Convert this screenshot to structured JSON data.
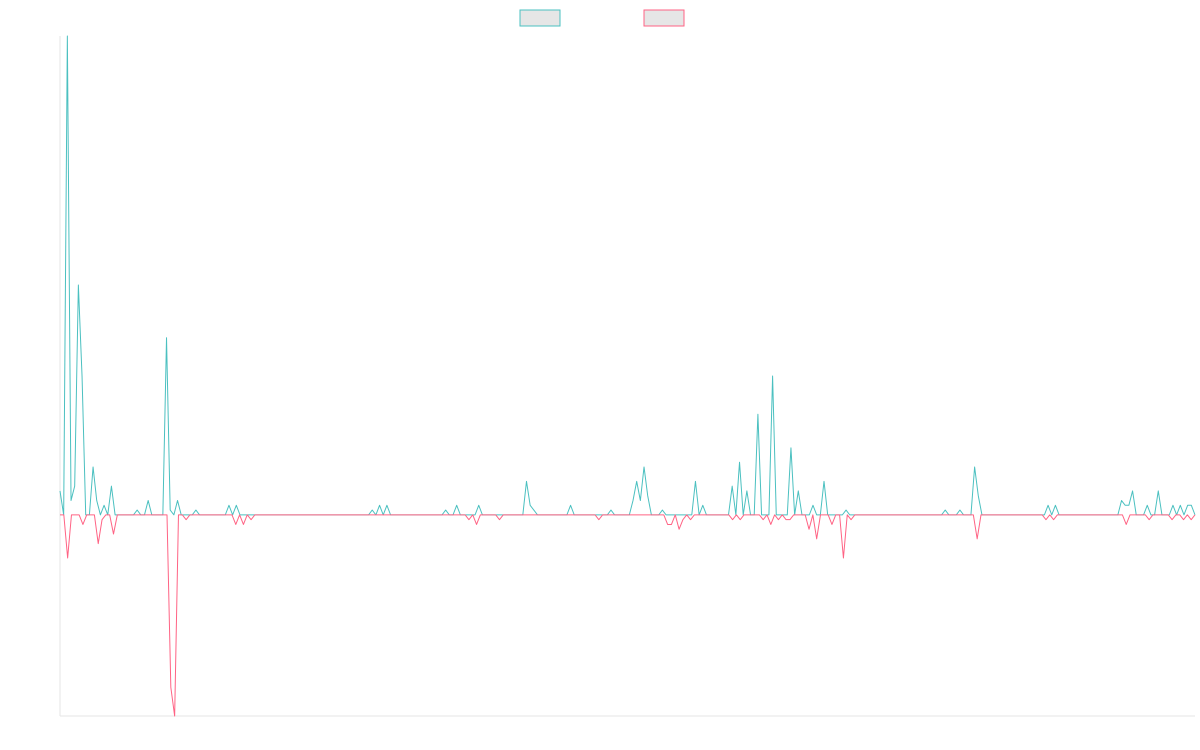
{
  "chart_data": {
    "type": "line",
    "title": "",
    "xlabel": "",
    "ylabel": "",
    "ylim": [
      -0.42,
      1.0
    ],
    "grid": false,
    "legend": {
      "position": "top-center"
    },
    "legend_fill": "#e6e6e6",
    "series": [
      {
        "color": "#4bc0c0",
        "values": [
          0.05,
          0,
          1.0,
          0.03,
          0.06,
          0.48,
          0.29,
          0,
          0,
          0.1,
          0.03,
          0,
          0.02,
          0,
          0.06,
          0,
          0,
          0,
          0,
          0,
          0,
          0.01,
          0,
          0,
          0.03,
          0,
          0,
          0,
          0,
          0.37,
          0.01,
          0,
          0.03,
          0,
          0,
          0,
          0,
          0.01,
          0,
          0,
          0,
          0,
          0,
          0,
          0,
          0,
          0.02,
          0,
          0.02,
          0,
          0,
          0,
          0,
          0,
          0,
          0,
          0,
          0,
          0,
          0,
          0,
          0,
          0,
          0,
          0,
          0,
          0,
          0,
          0,
          0,
          0,
          0,
          0,
          0,
          0,
          0,
          0,
          0,
          0,
          0,
          0,
          0,
          0,
          0,
          0,
          0.01,
          0,
          0.02,
          0,
          0.02,
          0,
          0,
          0,
          0,
          0,
          0,
          0,
          0,
          0,
          0,
          0,
          0,
          0,
          0,
          0,
          0.01,
          0,
          0,
          0.02,
          0,
          0,
          0,
          0,
          0,
          0.02,
          0,
          0,
          0,
          0,
          0,
          0,
          0,
          0,
          0,
          0,
          0,
          0,
          0.07,
          0.02,
          0.01,
          0,
          0,
          0,
          0,
          0,
          0,
          0,
          0,
          0,
          0.02,
          0,
          0,
          0,
          0,
          0,
          0,
          0,
          0,
          0,
          0,
          0.01,
          0,
          0,
          0,
          0,
          0,
          0.03,
          0.07,
          0.03,
          0.1,
          0.04,
          0,
          0,
          0,
          0.01,
          0,
          0,
          0,
          0,
          0,
          0,
          0,
          0,
          0.07,
          0,
          0.02,
          0,
          0,
          0,
          0,
          0,
          0,
          0,
          0.06,
          0,
          0.11,
          0,
          0.05,
          0,
          0,
          0.21,
          0,
          0,
          0,
          0.29,
          0,
          0,
          0,
          0,
          0.14,
          0,
          0.05,
          0,
          0,
          0,
          0.02,
          0,
          0,
          0.07,
          0,
          0,
          0,
          0,
          0,
          0.01,
          0,
          0,
          0,
          0,
          0,
          0,
          0,
          0,
          0,
          0,
          0,
          0,
          0,
          0,
          0,
          0,
          0,
          0,
          0,
          0,
          0,
          0,
          0,
          0,
          0,
          0,
          0.01,
          0,
          0,
          0,
          0.01,
          0,
          0,
          0,
          0.1,
          0.04,
          0,
          0,
          0,
          0,
          0,
          0,
          0,
          0,
          0,
          0,
          0,
          0,
          0,
          0,
          0,
          0,
          0,
          0,
          0.02,
          0,
          0.02,
          0,
          0,
          0,
          0,
          0,
          0,
          0,
          0,
          0,
          0,
          0,
          0,
          0,
          0,
          0,
          0,
          0,
          0.03,
          0.02,
          0.02,
          0.05,
          0,
          0,
          0,
          0.02,
          0,
          0,
          0.05,
          0,
          0,
          0,
          0.02,
          0,
          0.02,
          0,
          0.02,
          0.02,
          0
        ]
      },
      {
        "color": "#ff6384",
        "values": [
          0,
          0,
          -0.09,
          0,
          0,
          0,
          -0.02,
          0,
          0,
          0,
          -0.06,
          -0.01,
          0,
          0,
          -0.04,
          0,
          0,
          0,
          0,
          0,
          0,
          0,
          0,
          0,
          0,
          0,
          0,
          0,
          0,
          -0.36,
          -0.42,
          0,
          0,
          -0.01,
          0,
          0,
          0,
          0,
          0,
          0,
          0,
          0,
          0,
          0,
          0,
          0,
          -0.02,
          0,
          -0.02,
          0,
          -0.01,
          0,
          0,
          0,
          0,
          0,
          0,
          0,
          0,
          0,
          0,
          0,
          0,
          0,
          0,
          0,
          0,
          0,
          0,
          0,
          0,
          0,
          0,
          0,
          0,
          0,
          0,
          0,
          0,
          0,
          0,
          0,
          0,
          0,
          0,
          0,
          0,
          0,
          0,
          0,
          0,
          0,
          0,
          0,
          0,
          0,
          0,
          0,
          0,
          0,
          0,
          0,
          0,
          0,
          0,
          0,
          0,
          -0.01,
          0,
          -0.02,
          0,
          0,
          0,
          0,
          0,
          -0.01,
          0,
          0,
          0,
          0,
          0,
          0,
          0,
          0,
          0,
          0,
          0,
          0,
          0,
          0,
          0,
          0,
          0,
          0,
          0,
          0,
          0,
          0,
          0,
          0,
          0,
          -0.01,
          0,
          0,
          0,
          0,
          0,
          0,
          0,
          0,
          0,
          0,
          0,
          0,
          0,
          0,
          0,
          0,
          0,
          -0.02,
          -0.02,
          0,
          -0.03,
          -0.01,
          0,
          -0.01,
          0,
          0,
          0,
          0,
          0,
          0,
          0,
          0,
          0,
          0,
          -0.01,
          0,
          -0.01,
          0,
          0,
          0,
          0,
          0,
          -0.01,
          0,
          -0.02,
          0,
          -0.01,
          0,
          -0.01,
          -0.01,
          0,
          0,
          0,
          0,
          -0.03,
          0,
          -0.05,
          0,
          0,
          0,
          -0.02,
          0,
          0,
          -0.09,
          0,
          -0.01,
          0,
          0,
          0,
          0,
          0,
          0,
          0,
          0,
          0,
          0,
          0,
          0,
          0,
          0,
          0,
          0,
          0,
          0,
          0,
          0,
          0,
          0,
          0,
          0,
          0,
          0,
          0,
          0,
          0,
          0,
          0,
          0,
          -0.05,
          0,
          0,
          0,
          0,
          0,
          0,
          0,
          0,
          0,
          0,
          0,
          0,
          0,
          0,
          0,
          0,
          0,
          -0.01,
          0,
          -0.01,
          0,
          0,
          0,
          0,
          0,
          0,
          0,
          0,
          0,
          0,
          0,
          0,
          0,
          0,
          0,
          0,
          0,
          0,
          -0.02,
          0,
          0,
          0,
          0,
          0,
          -0.01,
          0,
          0,
          0,
          0,
          0,
          -0.01,
          0,
          0,
          -0.01,
          0,
          -0.01,
          0
        ]
      }
    ]
  }
}
